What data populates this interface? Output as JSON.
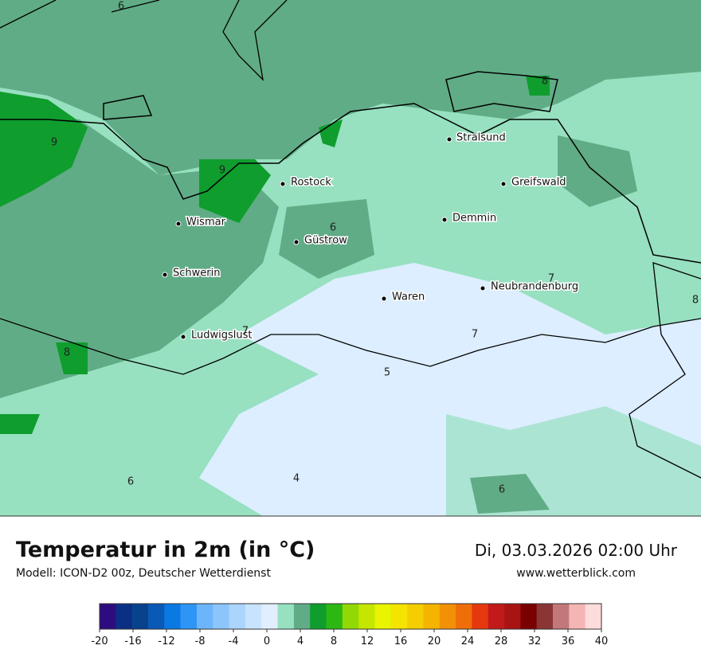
{
  "header": {
    "title": "Temperatur in 2m (in °C)",
    "model": "Modell: ICON-D2 00z, Deutscher Wetterdienst",
    "date": "Di, 03.03.2026 02:00 Uhr",
    "website": "www.wetterblick.com"
  },
  "cities": [
    "Stralsund",
    "Rostock",
    "Greifswald",
    "Demmin",
    "Wismar",
    "Güstrow",
    "Schwerin",
    "Neubrandenburg",
    "Waren",
    "Ludwigslust"
  ],
  "contour_labels": [
    "6",
    "9",
    "9",
    "6",
    "8",
    "8",
    "7",
    "7",
    "8",
    "5",
    "7",
    "6",
    "4",
    "6"
  ],
  "legend": {
    "colors": [
      "#2e0c7f",
      "#0b2f84",
      "#08418c",
      "#0a59b6",
      "#0a79e2",
      "#2c95f6",
      "#6cb5fa",
      "#8cc5fb",
      "#abd5fc",
      "#c8e3fd",
      "#e0eefe",
      "#97e0c0",
      "#60ac86",
      "#0f9d2e",
      "#2bb812",
      "#92d806",
      "#c5e600",
      "#e8f400",
      "#f4e400",
      "#f4ce00",
      "#f4b400",
      "#f29008",
      "#ef6e0a",
      "#e6380e",
      "#c21a1a",
      "#a81414",
      "#7a0000",
      "#8b3535",
      "#c27878",
      "#f5b5b5"
    ],
    "last_color": "#ffdcdc",
    "ticks": [
      -20,
      -16,
      -12,
      -8,
      -4,
      0,
      4,
      8,
      12,
      16,
      20,
      24,
      28,
      32,
      36,
      40
    ]
  }
}
